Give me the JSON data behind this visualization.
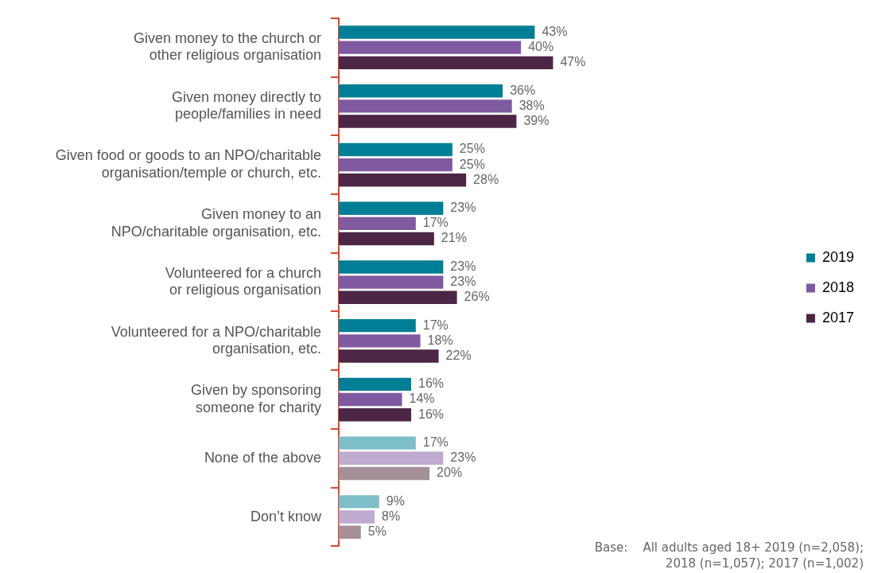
{
  "chart_data": {
    "type": "bar",
    "orientation": "horizontal",
    "legend": "right",
    "categories": [
      "Given money to the church or\nother religious organisation",
      "Given money directly to\npeople/families in need",
      "Given food or goods to an NPO/charitable\norganisation/temple or church, etc.",
      "Given money to an\nNPO/charitable organisation, etc.",
      "Volunteered for a church\nor religious organisation",
      "Volunteered for a NPO/charitable\norganisation, etc.",
      "Given by sponsoring\nsomeone for charity",
      "None of the above",
      "Don’t know"
    ],
    "series": [
      {
        "name": "2019",
        "color": "#007e96",
        "colors": [
          "#007e96",
          "#007e96",
          "#007e96",
          "#007e96",
          "#007e96",
          "#007e96",
          "#007e96",
          "#7fbfca",
          "#7fbfca"
        ],
        "values": [
          43,
          36,
          25,
          23,
          23,
          17,
          16,
          17,
          9
        ],
        "value_labels": [
          "43%",
          "36%",
          "25%",
          "23%",
          "23%",
          "17%",
          "16%",
          "17%",
          "9%"
        ]
      },
      {
        "name": "2018",
        "color": "#7f5aa0",
        "colors": [
          "#7f5aa0",
          "#7f5aa0",
          "#7f5aa0",
          "#7f5aa0",
          "#7f5aa0",
          "#7f5aa0",
          "#7f5aa0",
          "#bfaad0",
          "#bfaad0"
        ],
        "values": [
          40,
          38,
          25,
          17,
          23,
          18,
          14,
          23,
          8
        ],
        "value_labels": [
          "40%",
          "38%",
          "25%",
          "17%",
          "23%",
          "18%",
          "14%",
          "23%",
          "8%"
        ]
      },
      {
        "name": "2017",
        "color": "#4b2645",
        "colors": [
          "#4b2645",
          "#4b2645",
          "#4b2645",
          "#4b2645",
          "#4b2645",
          "#4b2645",
          "#4b2645",
          "#a59099",
          "#a59099"
        ],
        "values": [
          47,
          39,
          28,
          21,
          26,
          22,
          16,
          20,
          5
        ],
        "value_labels": [
          "47%",
          "39%",
          "28%",
          "21%",
          "26%",
          "22%",
          "16%",
          "20%",
          "5%"
        ]
      }
    ],
    "annotations": [
      "Base:    All adults aged 18+ 2019 (n=2,058);\n2018 (n=1,057); 2017 (n=1,002)"
    ]
  }
}
